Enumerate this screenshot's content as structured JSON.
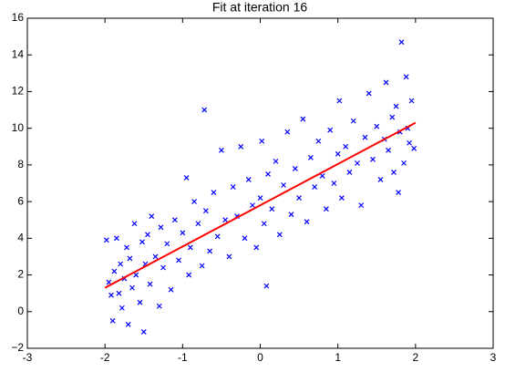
{
  "chart_data": {
    "type": "scatter",
    "title": "Fit at iteration 16",
    "xlim": [
      -3,
      3
    ],
    "xticks": [
      -3,
      -2,
      -1,
      0,
      1,
      2,
      3
    ],
    "ylim": [
      -2,
      16
    ],
    "yticks": [
      {
        "value": -2,
        "label": "−2"
      },
      0,
      2,
      4,
      6,
      8,
      10,
      12,
      14,
      16
    ],
    "series": [
      {
        "type": "scatter",
        "color": "#0000ff",
        "x": [
          -1.98,
          -1.95,
          -1.92,
          -1.9,
          -1.88,
          -1.85,
          -1.82,
          -1.8,
          -1.78,
          -1.75,
          -1.72,
          -1.7,
          -1.68,
          -1.65,
          -1.62,
          -1.6,
          -1.55,
          -1.52,
          -1.5,
          -1.48,
          -1.45,
          -1.42,
          -1.4,
          -1.35,
          -1.3,
          -1.28,
          -1.25,
          -1.2,
          -1.15,
          -1.1,
          -1.05,
          -1.0,
          -0.95,
          -0.92,
          -0.9,
          -0.85,
          -0.8,
          -0.75,
          -0.72,
          -0.7,
          -0.65,
          -0.6,
          -0.55,
          -0.5,
          -0.45,
          -0.4,
          -0.35,
          -0.3,
          -0.25,
          -0.2,
          -0.15,
          -0.1,
          -0.05,
          0.0,
          0.02,
          0.05,
          0.08,
          0.1,
          0.15,
          0.2,
          0.25,
          0.3,
          0.35,
          0.4,
          0.45,
          0.5,
          0.55,
          0.6,
          0.65,
          0.7,
          0.75,
          0.8,
          0.85,
          0.9,
          0.95,
          1.0,
          1.02,
          1.05,
          1.1,
          1.15,
          1.2,
          1.25,
          1.3,
          1.35,
          1.4,
          1.45,
          1.5,
          1.55,
          1.6,
          1.62,
          1.65,
          1.7,
          1.72,
          1.75,
          1.78,
          1.8,
          1.82,
          1.85,
          1.88,
          1.9,
          1.92,
          1.95,
          1.98
        ],
        "values": [
          3.9,
          1.6,
          0.9,
          -0.5,
          2.2,
          4.0,
          1.0,
          2.6,
          0.2,
          1.8,
          3.5,
          -0.7,
          2.9,
          1.3,
          4.8,
          2.0,
          0.5,
          3.8,
          -1.1,
          2.6,
          4.2,
          1.5,
          5.2,
          3.0,
          0.3,
          4.6,
          2.4,
          3.7,
          1.2,
          5.0,
          2.8,
          4.3,
          7.3,
          2.0,
          3.5,
          6.0,
          4.8,
          2.5,
          11.0,
          5.5,
          3.3,
          6.5,
          4.1,
          8.8,
          5.0,
          3.0,
          6.8,
          5.2,
          9.0,
          4.0,
          7.2,
          5.8,
          3.5,
          6.2,
          9.3,
          4.8,
          1.4,
          7.5,
          5.6,
          8.2,
          4.2,
          6.9,
          9.8,
          5.3,
          7.8,
          6.2,
          10.5,
          4.9,
          8.4,
          6.8,
          9.3,
          7.4,
          5.6,
          9.9,
          7.0,
          8.6,
          11.5,
          6.2,
          9.0,
          7.6,
          10.4,
          8.1,
          5.8,
          9.5,
          11.9,
          8.3,
          10.1,
          7.2,
          9.4,
          12.5,
          8.8,
          10.6,
          7.6,
          11.2,
          6.5,
          9.8,
          14.7,
          8.1,
          12.8,
          10.0,
          9.2,
          11.5,
          8.9
        ]
      },
      {
        "type": "line",
        "color": "#ff0000",
        "x": [
          -2,
          2
        ],
        "values": [
          1.3,
          10.3
        ]
      }
    ]
  }
}
